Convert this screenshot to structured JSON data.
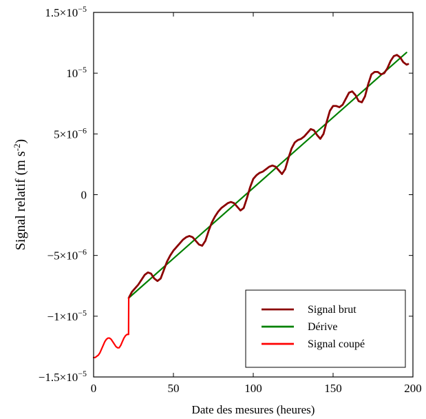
{
  "chart_data": {
    "type": "line",
    "title": "",
    "xlabel": "Date des mesures (heures)",
    "ylabel": {
      "main": "Signal relatif (m s",
      "sup": "-2",
      "close": ")"
    },
    "xlim": [
      0,
      200
    ],
    "ylim": [
      -1.5e-05,
      1.5e-05
    ],
    "grid": false,
    "legend_position": "bottom-right",
    "x_ticks": [
      {
        "value": 0,
        "label": "0"
      },
      {
        "value": 50,
        "label": "50"
      },
      {
        "value": 100,
        "label": "100"
      },
      {
        "value": 150,
        "label": "150"
      },
      {
        "value": 200,
        "label": "200"
      }
    ],
    "y_ticks": [
      {
        "value": -1.5e-05,
        "label": "−1.5×10",
        "exp": "−5"
      },
      {
        "value": -1e-05,
        "label": "−1×10",
        "exp": "−5"
      },
      {
        "value": -5e-06,
        "label": "−5×10",
        "exp": "−6"
      },
      {
        "value": 0,
        "label": "0",
        "exp": ""
      },
      {
        "value": 5e-06,
        "label": "5×10",
        "exp": "−6"
      },
      {
        "value": 1e-05,
        "label": "10",
        "exp": "−5"
      },
      {
        "value": 1.5e-05,
        "label": "1.5×10",
        "exp": "−5"
      }
    ],
    "series": [
      {
        "name": "Signal brut",
        "color": "#8b0000",
        "x": [
          22,
          24,
          26,
          28,
          30,
          32,
          34,
          36,
          38,
          40,
          42,
          44,
          46,
          48,
          50,
          52,
          54,
          56,
          58,
          60,
          62,
          64,
          66,
          68,
          70,
          72,
          74,
          76,
          78,
          80,
          82,
          84,
          86,
          88,
          90,
          92,
          94,
          96,
          98,
          100,
          102,
          104,
          106,
          108,
          110,
          112,
          114,
          116,
          118,
          120,
          122,
          124,
          126,
          128,
          130,
          132,
          134,
          136,
          138,
          140,
          142,
          144,
          146,
          148,
          150,
          152,
          154,
          156,
          158,
          160,
          162,
          164,
          166,
          168,
          170,
          172,
          174,
          176,
          178,
          180,
          182,
          184,
          186,
          188,
          190,
          192,
          194,
          196,
          197
        ],
        "y": [
          -8.5e-06,
          -8e-06,
          -7.7e-06,
          -7.4e-06,
          -7e-06,
          -6.6e-06,
          -6.4e-06,
          -6.5e-06,
          -6.9e-06,
          -7.1e-06,
          -6.9e-06,
          -6.2e-06,
          -5.5e-06,
          -5e-06,
          -4.6e-06,
          -4.3e-06,
          -4e-06,
          -3.7e-06,
          -3.5e-06,
          -3.4e-06,
          -3.5e-06,
          -3.8e-06,
          -4.1e-06,
          -4.2e-06,
          -3.8e-06,
          -3e-06,
          -2.3e-06,
          -1.8e-06,
          -1.4e-06,
          -1.1e-06,
          -9e-07,
          -7e-07,
          -6e-07,
          -7e-07,
          -1e-06,
          -1.3e-06,
          -1.1e-06,
          -3e-07,
          6e-07,
          1.3e-06,
          1.6e-06,
          1.8e-06,
          1.9e-06,
          2.1e-06,
          2.3e-06,
          2.4e-06,
          2.3e-06,
          2e-06,
          1.7e-06,
          2.1e-06,
          3e-06,
          3.8e-06,
          4.3e-06,
          4.5e-06,
          4.6e-06,
          4.8e-06,
          5.1e-06,
          5.4e-06,
          5.3e-06,
          4.9e-06,
          4.6e-06,
          5e-06,
          6e-06,
          6.9e-06,
          7.3e-06,
          7.3e-06,
          7.2e-06,
          7.4e-06,
          7.9e-06,
          8.4e-06,
          8.5e-06,
          8.2e-06,
          7.7e-06,
          7.6e-06,
          8.1e-06,
          9.1e-06,
          9.9e-06,
          1.01e-05,
          1.01e-05,
          9.9e-06,
          1e-05,
          1.04e-05,
          1.1e-05,
          1.14e-05,
          1.15e-05,
          1.13e-05,
          1.09e-05,
          1.07e-05,
          1.075e-05
        ]
      },
      {
        "name": "Dérive",
        "color": "#008000",
        "x": [
          22,
          196
        ],
        "y": [
          -8.5e-06,
          1.17e-05
        ]
      },
      {
        "name": "Signal coupé",
        "color": "#ff0000",
        "x": [
          0,
          1,
          2,
          3,
          4,
          5,
          6,
          7,
          8,
          9,
          10,
          11,
          12,
          13,
          14,
          15,
          16,
          17,
          18,
          19,
          20,
          21,
          21.9,
          22
        ],
        "y": [
          -1.34e-05,
          -1.34e-05,
          -1.33e-05,
          -1.32e-05,
          -1.3e-05,
          -1.27e-05,
          -1.24e-05,
          -1.21e-05,
          -1.19e-05,
          -1.18e-05,
          -1.18e-05,
          -1.19e-05,
          -1.21e-05,
          -1.23e-05,
          -1.25e-05,
          -1.26e-05,
          -1.26e-05,
          -1.24e-05,
          -1.21e-05,
          -1.18e-05,
          -1.16e-05,
          -1.15e-05,
          -1.15e-05,
          -8.5e-06
        ]
      }
    ]
  }
}
